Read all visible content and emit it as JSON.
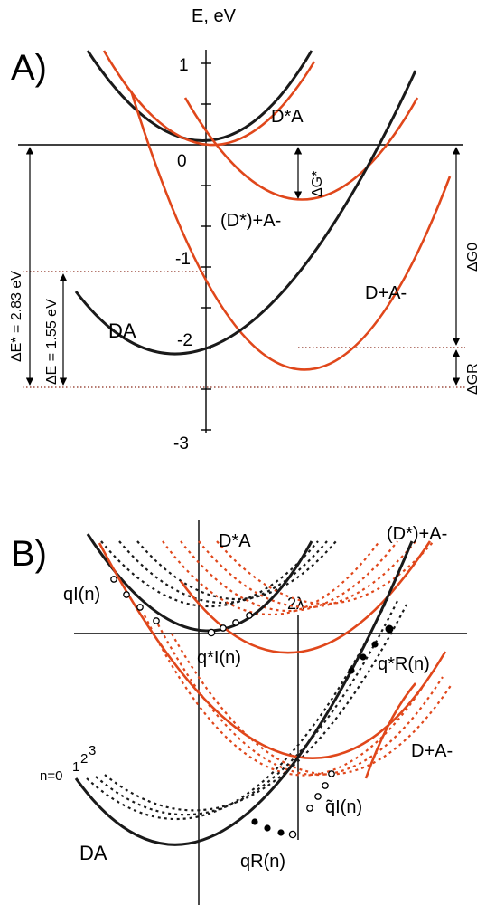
{
  "colors": {
    "dark_curve": "#1a1a1a",
    "red_curve": "#e0471b"
  },
  "panelA": {
    "label": "A)",
    "axis_title": "E, eV",
    "ticks": [
      "1",
      "0",
      "-1",
      "-2",
      "-3"
    ],
    "curves": {
      "dstar_a": "D*A",
      "dstar_plus_a_minus": "(D*)+A-",
      "d_plus_a_minus": "D+A-",
      "da": "DA"
    },
    "arrows": {
      "dg_star": "ΔG*",
      "dg0": "ΔG0",
      "dgr": "ΔGR",
      "de_star": "ΔE* = 2.83 eV",
      "de": "ΔE = 1.55 eV"
    }
  },
  "panelB": {
    "label": "B)",
    "curves": {
      "dstar_a": "D*A",
      "dstar_plus_a_minus": "(D*)+A-",
      "d_plus_a_minus": "D+A-",
      "da": "DA"
    },
    "two_lambda": "2λ",
    "levels": {
      "n0": "n=0",
      "n1": "1",
      "n2": "2",
      "n3": "3"
    },
    "points": {
      "q_I": "qI(n)",
      "q_I_star": "q*I(n)",
      "q_R_star": "q*R(n)",
      "q_tilde_I": "q̃I(n)",
      "q_R": "qR(n)"
    }
  }
}
